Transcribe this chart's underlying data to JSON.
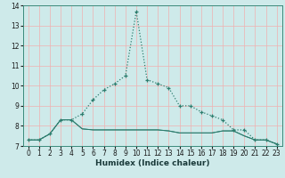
{
  "title": "",
  "xlabel": "Humidex (Indice chaleur)",
  "bg_color": "#ceeaea",
  "line_color": "#2d7d6e",
  "grid_major_color": "#f0b0b0",
  "grid_minor_color": "#f0b0b0",
  "xlim": [
    -0.5,
    23.5
  ],
  "ylim": [
    7.0,
    14.0
  ],
  "xticks": [
    0,
    1,
    2,
    3,
    4,
    5,
    6,
    7,
    8,
    9,
    10,
    11,
    12,
    13,
    14,
    15,
    16,
    17,
    18,
    19,
    20,
    21,
    22,
    23
  ],
  "yticks": [
    7,
    8,
    9,
    10,
    11,
    12,
    13,
    14
  ],
  "series1_x": [
    0,
    1,
    2,
    3,
    4,
    5,
    6,
    7,
    8,
    9,
    10,
    11,
    12,
    13,
    14,
    15,
    16,
    17,
    18,
    19,
    20,
    21,
    22,
    23
  ],
  "series1_y": [
    7.3,
    7.3,
    7.6,
    8.3,
    8.3,
    8.6,
    9.3,
    9.8,
    10.1,
    10.5,
    13.7,
    10.3,
    10.1,
    9.9,
    9.0,
    9.0,
    8.7,
    8.5,
    8.3,
    7.8,
    7.8,
    7.3,
    7.3,
    7.1
  ],
  "series2_x": [
    0,
    1,
    2,
    3,
    4,
    5,
    6,
    7,
    8,
    9,
    10,
    11,
    12,
    13,
    14,
    15,
    16,
    17,
    18,
    19,
    20,
    21,
    22,
    23
  ],
  "series2_y": [
    7.3,
    7.3,
    7.6,
    8.3,
    8.3,
    7.85,
    7.8,
    7.8,
    7.8,
    7.8,
    7.8,
    7.8,
    7.8,
    7.75,
    7.65,
    7.65,
    7.65,
    7.65,
    7.75,
    7.75,
    7.5,
    7.3,
    7.3,
    7.1
  ],
  "series3_x": [
    0,
    1,
    2,
    3,
    4,
    5,
    6,
    7,
    8,
    9,
    10,
    11,
    12,
    13,
    14,
    15,
    16,
    17,
    18,
    19,
    20,
    21,
    22,
    23
  ],
  "series3_y": [
    7.3,
    7.3,
    7.6,
    8.3,
    8.3,
    7.85,
    7.8,
    7.8,
    7.8,
    7.8,
    7.8,
    7.8,
    7.8,
    7.75,
    7.65,
    7.65,
    7.65,
    7.65,
    7.75,
    7.75,
    7.5,
    7.3,
    7.3,
    7.1
  ],
  "xlabel_fontsize": 6.5,
  "tick_fontsize": 5.5
}
